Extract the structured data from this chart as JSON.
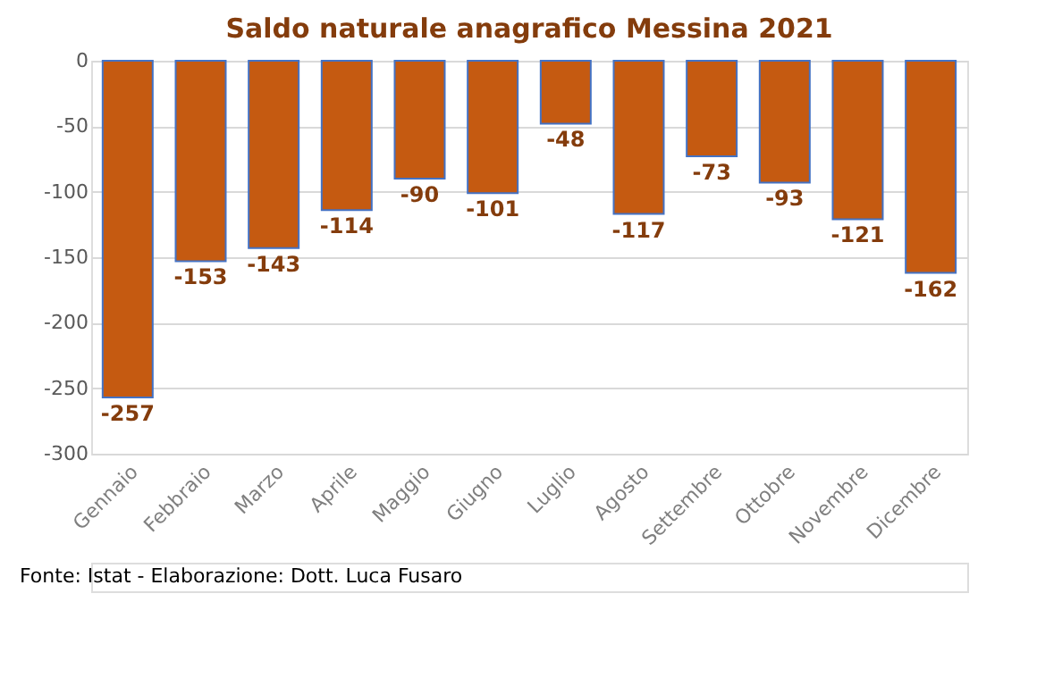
{
  "chart_data": {
    "type": "bar",
    "title": "Saldo naturale anagrafico Messina 2021",
    "categories": [
      "Gennaio",
      "Febbraio",
      "Marzo",
      "Aprile",
      "Maggio",
      "Giugno",
      "Luglio",
      "Agosto",
      "Settembre",
      "Ottobre",
      "Novembre",
      "Dicembre"
    ],
    "values": [
      -257,
      -153,
      -143,
      -114,
      -90,
      -101,
      -48,
      -117,
      -73,
      -93,
      -121,
      -162
    ],
    "color": "#c55a11",
    "ylim": [
      -300,
      0
    ],
    "yticks": [
      -300,
      -250,
      -200,
      -150,
      -100,
      -50,
      0
    ],
    "grid": "y",
    "data_labels": true,
    "annotations": [
      "Fonte: Istat - Elaborazione: Dott. Luca Fusaro"
    ]
  }
}
